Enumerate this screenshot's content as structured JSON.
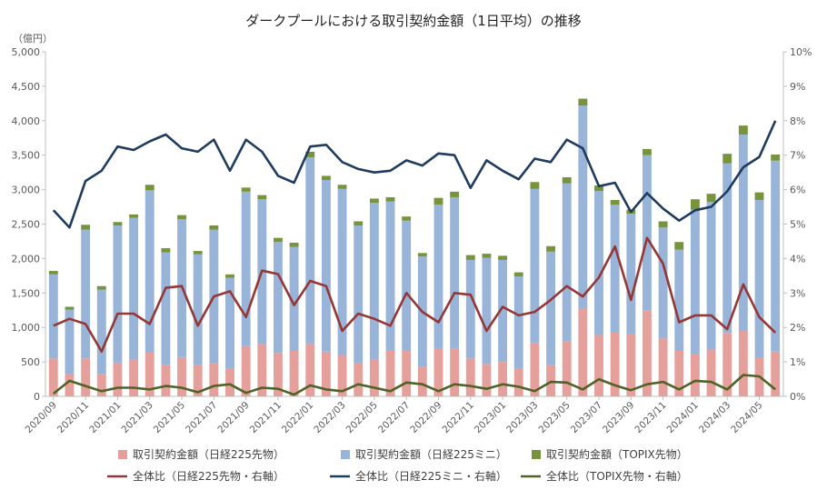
{
  "chart_data": {
    "type": "bar",
    "stacked": true,
    "title": "ダークプールにおける取引契約金額（1日平均）の推移",
    "left_unit": "（億円）",
    "left_ticks": [
      "0",
      "500",
      "1,000",
      "1,500",
      "2,000",
      "2,500",
      "3,000",
      "3,500",
      "4,000",
      "4,500",
      "5,000"
    ],
    "right_ticks": [
      "0%",
      "1%",
      "2%",
      "3%",
      "4%",
      "5%",
      "6%",
      "7%",
      "8%",
      "9%",
      "10%"
    ],
    "left_ylim": [
      0,
      5000
    ],
    "right_ylim": [
      0,
      10
    ],
    "x_tick_labels": [
      "2020/09",
      "2020/11",
      "2021/01",
      "2021/03",
      "2021/05",
      "2021/07",
      "2021/09",
      "2021/11",
      "2022/01",
      "2022/03",
      "2022/05",
      "2022/07",
      "2022/09",
      "2022/11",
      "2023/01",
      "2023/03",
      "2023/05",
      "2023/07",
      "2023/09",
      "2023/11",
      "2024/01",
      "2024/03",
      "2024/05"
    ],
    "categories": [
      "2020/09",
      "2020/10",
      "2020/11",
      "2020/12",
      "2021/01",
      "2021/02",
      "2021/03",
      "2021/04",
      "2021/05",
      "2021/06",
      "2021/07",
      "2021/08",
      "2021/09",
      "2021/10",
      "2021/11",
      "2021/12",
      "2022/01",
      "2022/02",
      "2022/03",
      "2022/04",
      "2022/05",
      "2022/06",
      "2022/07",
      "2022/08",
      "2022/09",
      "2022/10",
      "2022/11",
      "2022/12",
      "2023/01",
      "2023/02",
      "2023/03",
      "2023/04",
      "2023/05",
      "2023/06",
      "2023/07",
      "2023/08",
      "2023/09",
      "2023/10",
      "2023/11",
      "2023/12",
      "2024/01",
      "2024/02",
      "2024/03",
      "2024/04",
      "2024/05",
      "2024/06"
    ],
    "bar_series": [
      {
        "name": "取引契約金額（日経225先物）",
        "color": "#e6a09c",
        "values": [
          550,
          330,
          550,
          320,
          490,
          530,
          640,
          460,
          570,
          460,
          480,
          410,
          730,
          760,
          630,
          660,
          760,
          650,
          600,
          480,
          540,
          660,
          660,
          430,
          700,
          690,
          550,
          470,
          500,
          410,
          780,
          460,
          800,
          1280,
          890,
          930,
          910,
          1250,
          840,
          660,
          620,
          680,
          920,
          950,
          560,
          650
        ]
      },
      {
        "name": "取引契約金額（日経225ミニ）",
        "color": "#98b4d9",
        "values": [
          1220,
          930,
          1870,
          1230,
          1990,
          2060,
          2350,
          1630,
          2000,
          1600,
          1940,
          1310,
          2240,
          2100,
          1610,
          1510,
          2710,
          2490,
          2410,
          2000,
          2270,
          2170,
          1890,
          1600,
          2080,
          2200,
          1430,
          1540,
          1480,
          1330,
          2230,
          1640,
          2290,
          2940,
          2090,
          1850,
          1740,
          2250,
          1610,
          1470,
          2090,
          2140,
          2460,
          2850,
          2290,
          2770
        ]
      },
      {
        "name": "取引契約金額（TOPIX先物）",
        "color": "#77933c",
        "values": [
          50,
          40,
          70,
          50,
          50,
          50,
          80,
          60,
          60,
          50,
          60,
          50,
          60,
          60,
          60,
          60,
          80,
          60,
          60,
          60,
          60,
          60,
          60,
          50,
          100,
          80,
          70,
          60,
          60,
          60,
          100,
          80,
          90,
          100,
          80,
          70,
          60,
          90,
          90,
          110,
          150,
          120,
          140,
          130,
          110,
          90
        ]
      }
    ],
    "line_series": [
      {
        "name": "全体比（日経225先物・右軸）",
        "color": "#953735",
        "values": [
          2.05,
          2.25,
          2.1,
          1.3,
          2.4,
          2.4,
          2.1,
          3.15,
          3.2,
          2.05,
          2.9,
          3.05,
          2.3,
          3.65,
          3.55,
          2.65,
          3.35,
          3.2,
          1.9,
          2.4,
          2.25,
          2.05,
          3.0,
          2.45,
          2.15,
          3.0,
          2.95,
          1.9,
          2.6,
          2.35,
          2.45,
          2.8,
          3.2,
          2.9,
          3.45,
          4.35,
          2.8,
          4.6,
          3.85,
          2.15,
          2.35,
          2.35,
          1.95,
          3.25,
          2.3,
          1.85
        ]
      },
      {
        "name": "全体比（日経225ミニ・右軸）",
        "color": "#1f3b5e",
        "values": [
          5.4,
          4.9,
          6.25,
          6.55,
          7.25,
          7.15,
          7.4,
          7.6,
          7.2,
          7.1,
          7.45,
          6.55,
          7.45,
          7.1,
          6.4,
          6.2,
          7.25,
          7.3,
          6.8,
          6.6,
          6.5,
          6.55,
          6.85,
          6.7,
          7.05,
          7.0,
          6.05,
          6.85,
          6.55,
          6.3,
          6.9,
          6.8,
          7.45,
          7.2,
          6.1,
          6.2,
          5.35,
          5.9,
          5.45,
          5.1,
          5.4,
          5.5,
          5.95,
          6.65,
          6.95,
          8.0
        ]
      },
      {
        "name": "全体比（TOPIX先物・右軸）",
        "color": "#4f6228",
        "values": [
          0.08,
          0.45,
          0.3,
          0.15,
          0.25,
          0.25,
          0.2,
          0.3,
          0.25,
          0.12,
          0.3,
          0.35,
          0.1,
          0.25,
          0.22,
          0.05,
          0.32,
          0.2,
          0.15,
          0.35,
          0.25,
          0.15,
          0.4,
          0.35,
          0.15,
          0.35,
          0.3,
          0.22,
          0.35,
          0.28,
          0.15,
          0.42,
          0.4,
          0.2,
          0.5,
          0.32,
          0.18,
          0.35,
          0.42,
          0.2,
          0.45,
          0.42,
          0.2,
          0.62,
          0.58,
          0.2
        ]
      }
    ],
    "legend_placement": "bottom",
    "grid": false
  }
}
